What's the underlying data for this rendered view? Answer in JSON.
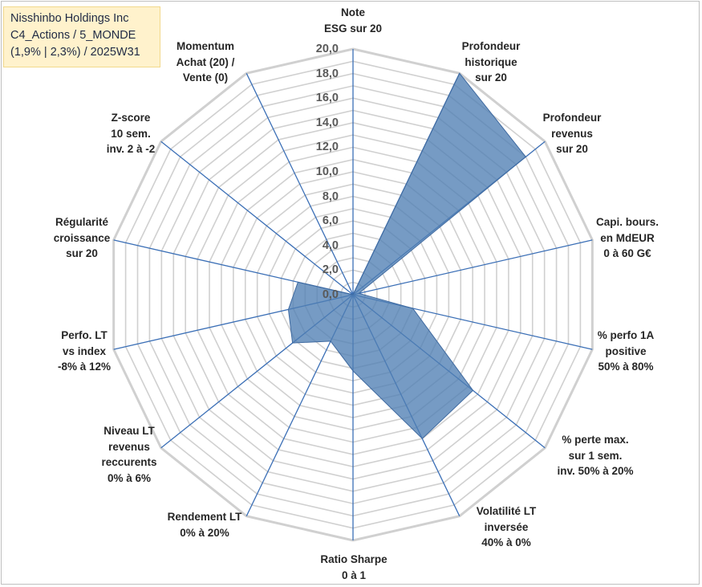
{
  "header": {
    "lines": [
      "Nisshinbo Holdings Inc",
      "C4_Actions / 5_MONDE",
      "(1,9% | 2,3%) / 2025W31"
    ]
  },
  "colors": {
    "fill": "#4f7fb3",
    "fill_stroke": "#3f6aa0",
    "grid": "#d0d0d0",
    "spoke": "#3b6fb6",
    "title_bg": "#fff2cc"
  },
  "chart_data": {
    "type": "radar",
    "rmin": 0,
    "rmax": 20,
    "tick_labels": [
      "0,0",
      "2,0",
      "4,0",
      "6,0",
      "8,0",
      "10,0",
      "12,0",
      "14,0",
      "16,0",
      "18,0",
      "20,0"
    ],
    "axes": [
      {
        "label_lines": [
          "Note",
          "ESG sur 20"
        ],
        "value": 0
      },
      {
        "label_lines": [
          "Profondeur",
          "historique",
          "sur 20"
        ],
        "value": 20
      },
      {
        "label_lines": [
          "Profondeur",
          "revenus",
          "sur 20"
        ],
        "value": 18
      },
      {
        "label_lines": [
          "Capi. bours.",
          "en MdEUR",
          "0 à 60 G€"
        ],
        "value": 0.5
      },
      {
        "label_lines": [
          "% perfo 1A",
          "positive",
          "50% à 80%"
        ],
        "value": 5
      },
      {
        "label_lines": [
          "% perte max.",
          "sur 1 sem.",
          "inv. 50% à 20%"
        ],
        "value": 12.5
      },
      {
        "label_lines": [
          "Volatilité LT",
          "inversée",
          "40% à 0%"
        ],
        "value": 13
      },
      {
        "label_lines": [
          "Ratio Sharpe",
          "0 à 1"
        ],
        "value": 6.2
      },
      {
        "label_lines": [
          "Rendement LT",
          "0% à 20%"
        ],
        "value": 4.2
      },
      {
        "label_lines": [
          "Niveau LT",
          "revenus",
          "reccurents",
          "0% à 6%"
        ],
        "value": 6.3
      },
      {
        "label_lines": [
          "Perfo. LT",
          "vs index",
          "-8% à 12%"
        ],
        "value": 5.4
      },
      {
        "label_lines": [
          "Régularité",
          "croissance",
          "sur 20"
        ],
        "value": 4.6
      },
      {
        "label_lines": [
          "Z-score",
          "10 sem.",
          "inv. 2 à -2"
        ],
        "value": 0
      },
      {
        "label_lines": [
          "Momentum",
          "Achat (20) /",
          "Vente (0)"
        ],
        "value": 0
      }
    ]
  }
}
